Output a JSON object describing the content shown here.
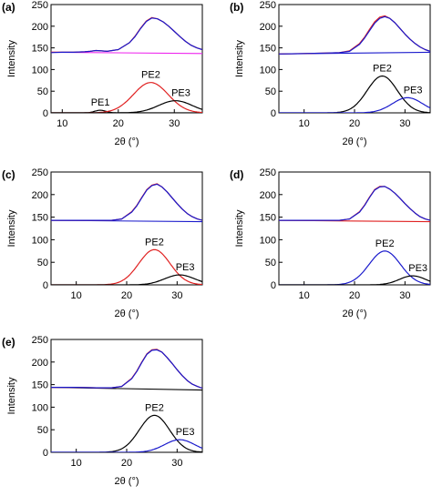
{
  "figure": {
    "colors": {
      "blue": "#1a1acc",
      "red": "#e02020",
      "black": "#000000",
      "magenta": "#ee22ee"
    }
  },
  "chart_data": [
    {
      "type": "line",
      "panel_label": "(a)",
      "xlabel": "2θ (°)",
      "ylabel": "Intensity",
      "xlim": [
        8,
        35
      ],
      "ylim": [
        0,
        250
      ],
      "xticks": [
        10,
        20,
        30
      ],
      "yticks": [
        0,
        50,
        100,
        150,
        200,
        250
      ],
      "baseline": {
        "color": "magenta",
        "x": [
          8,
          35
        ],
        "y": [
          140,
          137
        ]
      },
      "measured": {
        "color": "red",
        "x": [
          8,
          10,
          12,
          14,
          15,
          16,
          17,
          18,
          20,
          22,
          23,
          24,
          25,
          26,
          27,
          28,
          29,
          30,
          31,
          32,
          33,
          34,
          35
        ],
        "y": [
          140,
          140,
          140,
          141,
          142,
          144,
          143,
          142,
          146,
          162,
          177,
          196,
          212,
          220,
          217,
          210,
          200,
          188,
          176,
          165,
          156,
          150,
          146
        ]
      },
      "fit": {
        "color": "blue",
        "x": [
          8,
          10,
          12,
          14,
          15,
          16,
          17,
          18,
          20,
          22,
          23,
          24,
          25,
          26,
          27,
          28,
          29,
          30,
          31,
          32,
          33,
          34,
          35
        ],
        "y": [
          139,
          140,
          140,
          141,
          142,
          144,
          143,
          142,
          146,
          162,
          176,
          195,
          211,
          219,
          217,
          210,
          200,
          188,
          176,
          165,
          156,
          150,
          146
        ]
      },
      "peaks": [
        {
          "label": "PE1",
          "color": "black",
          "center": 16.8,
          "amplitude": 6,
          "width": 1.0
        },
        {
          "label": "PE2",
          "color": "red",
          "center": 25.8,
          "amplitude": 70,
          "width": 3.1
        },
        {
          "label": "PE3",
          "color": "black",
          "center": 30.2,
          "amplitude": 28,
          "width": 3.0
        }
      ]
    },
    {
      "type": "line",
      "panel_label": "(b)",
      "xlabel": "2θ (°)",
      "ylabel": "Intensity",
      "xlim": [
        5,
        35
      ],
      "ylim": [
        0,
        250
      ],
      "xticks": [
        10,
        20,
        30
      ],
      "yticks": [
        0,
        50,
        100,
        150,
        200,
        250
      ],
      "baseline": {
        "color": "blue",
        "x": [
          5,
          35
        ],
        "y": [
          136,
          140
        ]
      },
      "measured": {
        "color": "red",
        "x": [
          5,
          10,
          14,
          17,
          19,
          21,
          22,
          23,
          24,
          25,
          26,
          27,
          28,
          29,
          30,
          31,
          32,
          33,
          34,
          35
        ],
        "y": [
          136,
          137,
          138,
          139,
          143,
          160,
          175,
          193,
          210,
          221,
          224,
          218,
          208,
          195,
          182,
          170,
          160,
          152,
          146,
          142
        ]
      },
      "fit": {
        "color": "blue",
        "x": [
          5,
          10,
          14,
          17,
          19,
          21,
          22,
          23,
          24,
          25,
          26,
          27,
          28,
          29,
          30,
          31,
          32,
          33,
          34,
          35
        ],
        "y": [
          136,
          137,
          138,
          139,
          142,
          158,
          173,
          190,
          207,
          218,
          222,
          218,
          208,
          195,
          182,
          170,
          160,
          152,
          146,
          142
        ]
      },
      "peaks": [
        {
          "label": "PE2",
          "color": "black",
          "center": 25.5,
          "amplitude": 85,
          "width": 3.0
        },
        {
          "label": "PE3",
          "color": "blue",
          "center": 30.5,
          "amplitude": 35,
          "width": 3.0
        }
      ]
    },
    {
      "type": "line",
      "panel_label": "(c)",
      "xlabel": "2θ (°)",
      "ylabel": "Intensity",
      "xlim": [
        5,
        35
      ],
      "ylim": [
        0,
        250
      ],
      "xticks": [
        10,
        20,
        30
      ],
      "yticks": [
        0,
        50,
        100,
        150,
        200,
        250
      ],
      "baseline": {
        "color": "blue",
        "x": [
          5,
          35
        ],
        "y": [
          143,
          140
        ]
      },
      "measured": {
        "color": "red",
        "x": [
          5,
          10,
          14,
          17,
          19,
          21,
          22,
          23,
          24,
          25,
          26,
          27,
          28,
          29,
          30,
          31,
          32,
          33,
          34,
          35
        ],
        "y": [
          143,
          143,
          143,
          143,
          146,
          162,
          176,
          194,
          211,
          221,
          224,
          217,
          206,
          193,
          180,
          168,
          158,
          151,
          146,
          143
        ]
      },
      "fit": {
        "color": "blue",
        "x": [
          5,
          10,
          14,
          17,
          19,
          21,
          22,
          23,
          24,
          25,
          26,
          27,
          28,
          29,
          30,
          31,
          32,
          33,
          34,
          35
        ],
        "y": [
          143,
          143,
          143,
          143,
          146,
          161,
          175,
          193,
          210,
          220,
          223,
          217,
          206,
          193,
          180,
          168,
          158,
          151,
          146,
          143
        ]
      },
      "peaks": [
        {
          "label": "PE2",
          "color": "red",
          "center": 25.5,
          "amplitude": 78,
          "width": 3.1
        },
        {
          "label": "PE3",
          "color": "black",
          "center": 30.5,
          "amplitude": 22,
          "width": 3.0
        }
      ]
    },
    {
      "type": "line",
      "panel_label": "(d)",
      "xlabel": "2θ (°)",
      "ylabel": "Intensity",
      "xlim": [
        5,
        35
      ],
      "ylim": [
        0,
        250
      ],
      "xticks": [
        10,
        20,
        30
      ],
      "yticks": [
        0,
        50,
        100,
        150,
        200,
        250
      ],
      "baseline": {
        "color": "red",
        "x": [
          5,
          35
        ],
        "y": [
          143,
          140
        ]
      },
      "measured": {
        "color": "red",
        "x": [
          5,
          10,
          14,
          17,
          19,
          21,
          22,
          23,
          24,
          25,
          26,
          27,
          28,
          29,
          30,
          31,
          32,
          33,
          34,
          35
        ],
        "y": [
          143,
          143,
          143,
          143,
          146,
          162,
          177,
          195,
          211,
          218,
          218,
          212,
          203,
          192,
          180,
          169,
          159,
          151,
          146,
          143
        ]
      },
      "fit": {
        "color": "blue",
        "x": [
          5,
          10,
          14,
          17,
          19,
          21,
          22,
          23,
          24,
          25,
          26,
          27,
          28,
          29,
          30,
          31,
          32,
          33,
          34,
          35
        ],
        "y": [
          143,
          143,
          143,
          143,
          146,
          161,
          176,
          194,
          210,
          217,
          218,
          212,
          203,
          192,
          180,
          169,
          159,
          151,
          146,
          143
        ]
      },
      "peaks": [
        {
          "label": "PE2",
          "color": "blue",
          "center": 26.0,
          "amplitude": 75,
          "width": 3.1
        },
        {
          "label": "PE3",
          "color": "black",
          "center": 31.5,
          "amplitude": 20,
          "width": 2.6
        }
      ]
    },
    {
      "type": "line",
      "panel_label": "(e)",
      "xlabel": "2θ (°)",
      "ylabel": "Intensity",
      "xlim": [
        5,
        35
      ],
      "ylim": [
        0,
        250
      ],
      "xticks": [
        10,
        20,
        30
      ],
      "yticks": [
        0,
        50,
        100,
        150,
        200,
        250
      ],
      "baseline": {
        "color": "black",
        "x": [
          5,
          35
        ],
        "y": [
          144,
          138
        ]
      },
      "measured": {
        "color": "red",
        "x": [
          5,
          10,
          14,
          17,
          19,
          21,
          22,
          23,
          24,
          25,
          26,
          27,
          28,
          29,
          30,
          31,
          32,
          33,
          34,
          35
        ],
        "y": [
          144,
          144,
          143,
          143,
          146,
          164,
          180,
          200,
          218,
          227,
          228,
          222,
          210,
          197,
          183,
          170,
          159,
          151,
          146,
          142
        ]
      },
      "fit": {
        "color": "blue",
        "x": [
          5,
          10,
          14,
          17,
          19,
          21,
          22,
          23,
          24,
          25,
          26,
          27,
          28,
          29,
          30,
          31,
          32,
          33,
          34,
          35
        ],
        "y": [
          144,
          144,
          143,
          143,
          146,
          163,
          179,
          199,
          217,
          226,
          227,
          222,
          210,
          197,
          183,
          170,
          159,
          151,
          146,
          142
        ]
      },
      "peaks": [
        {
          "label": "PE2",
          "color": "black",
          "center": 25.5,
          "amplitude": 82,
          "width": 3.0
        },
        {
          "label": "PE3",
          "color": "blue",
          "center": 30.5,
          "amplitude": 28,
          "width": 3.0
        }
      ]
    }
  ]
}
